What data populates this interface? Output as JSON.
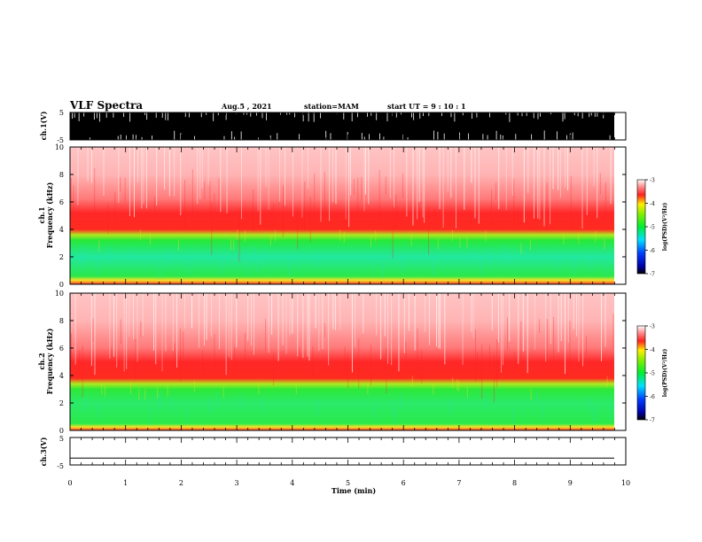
{
  "header": {
    "title": "VLF Spectra",
    "date": "Aug.5 , 2021",
    "station": "station=MAM",
    "start": "start UT = 9 : 10 : 1"
  },
  "chart_data": [
    {
      "type": "line",
      "panel": "ch1-waveform",
      "ylabel": "ch.1(V)",
      "ylim": [
        -5,
        5
      ],
      "yticks": [
        "5",
        "-5"
      ],
      "xlim": [
        0,
        10
      ],
      "note_fill": "dense black signal filling the range, with white gaps"
    },
    {
      "type": "heatmap",
      "panel": "ch1-spectrogram",
      "ylabel_line1": "ch.1",
      "ylabel_line2": "Frequency (kHz)",
      "ylim": [
        0,
        10
      ],
      "yticks": [
        "0",
        "2",
        "4",
        "6",
        "8",
        "10"
      ],
      "xlim": [
        0,
        10
      ],
      "data_end_min": 9.8,
      "bands": [
        {
          "from_khz": 0.0,
          "to_khz": 0.4,
          "log_psd": -4.0
        },
        {
          "from_khz": 0.4,
          "to_khz": 3.8,
          "log_psd": -5.0
        },
        {
          "from_khz": 3.8,
          "to_khz": 5.2,
          "log_psd": -4.0
        },
        {
          "from_khz": 5.2,
          "to_khz": 10.0,
          "log_psd": -3.3
        }
      ],
      "colorbar": {
        "label": "log(PSD)(V²/Hz)",
        "min": -7,
        "max": -3,
        "ticks": [
          "-3",
          "-4",
          "-5",
          "-6",
          "-7"
        ]
      }
    },
    {
      "type": "heatmap",
      "panel": "ch2-spectrogram",
      "ylabel_line1": "ch.2",
      "ylabel_line2": "Frequency (kHz)",
      "ylim": [
        0,
        10
      ],
      "yticks": [
        "0",
        "2",
        "4",
        "6",
        "8",
        "10"
      ],
      "xlim": [
        0,
        10
      ],
      "data_end_min": 9.8,
      "bands": [
        {
          "from_khz": 0.0,
          "to_khz": 0.3,
          "log_psd": -4.0
        },
        {
          "from_khz": 0.3,
          "to_khz": 3.6,
          "log_psd": -5.0
        },
        {
          "from_khz": 3.6,
          "to_khz": 5.0,
          "log_psd": -4.0
        },
        {
          "from_khz": 5.0,
          "to_khz": 10.0,
          "log_psd": -3.3
        }
      ],
      "colorbar": {
        "label": "log(PSD)(V²/Hz)",
        "min": -7,
        "max": -3,
        "ticks": [
          "-3",
          "-4",
          "-5",
          "-6",
          "-7"
        ]
      }
    },
    {
      "type": "line",
      "panel": "ch3-waveform",
      "ylabel": "ch.3(V)",
      "ylim": [
        -5,
        5
      ],
      "yticks": [
        "5",
        "-5"
      ],
      "xlim": [
        0,
        10
      ],
      "series": [
        {
          "values": [
            -2.5,
            -2.5
          ]
        }
      ]
    }
  ],
  "xaxis": {
    "label": "Time (min)",
    "ticks": [
      "0",
      "1",
      "2",
      "3",
      "4",
      "5",
      "6",
      "7",
      "8",
      "9",
      "10"
    ]
  },
  "colors": {
    "red": "#ff2a2a",
    "pink": "#ffd6d6",
    "yellow": "#f0e020",
    "green": "#22ee22",
    "cyan": "#20e0c0",
    "black": "#000000"
  }
}
